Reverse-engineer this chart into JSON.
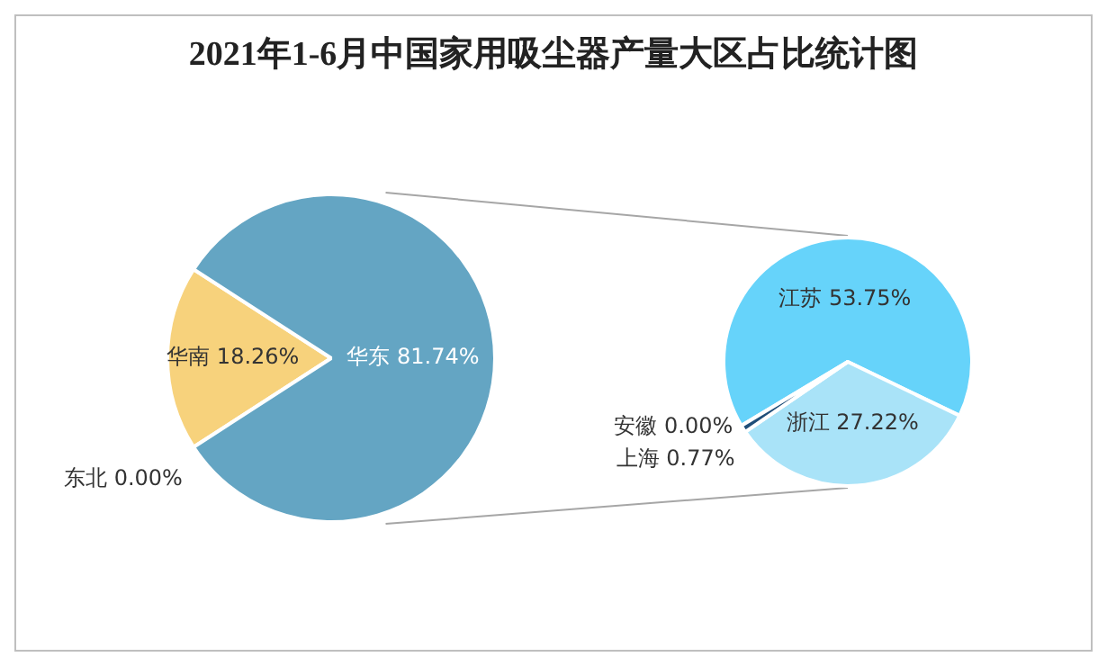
{
  "chart_data": [
    {
      "type": "pie",
      "title": "2021年1-6月中国家用吸尘器产量大区占比统计图",
      "categories": [
        "东北",
        "华南",
        "华东"
      ],
      "values": [
        0.0,
        18.26,
        81.74
      ],
      "value_labels": [
        "0.00%",
        "18.26%",
        "81.74%"
      ],
      "colors": [
        "#2f5f86",
        "#f7d27c",
        "#64a5c3"
      ],
      "legend": false
    },
    {
      "type": "pie",
      "categories": [
        "江苏",
        "浙江",
        "上海",
        "安徽"
      ],
      "values": [
        53.75,
        27.22,
        0.77,
        0.0
      ],
      "value_labels": [
        "53.75%",
        "27.22%",
        "0.77%",
        "0.00%"
      ],
      "colors": [
        "#66d3fa",
        "#a9e3f8",
        "#1f4e79",
        "#7f7f7f"
      ],
      "legend": false
    }
  ]
}
